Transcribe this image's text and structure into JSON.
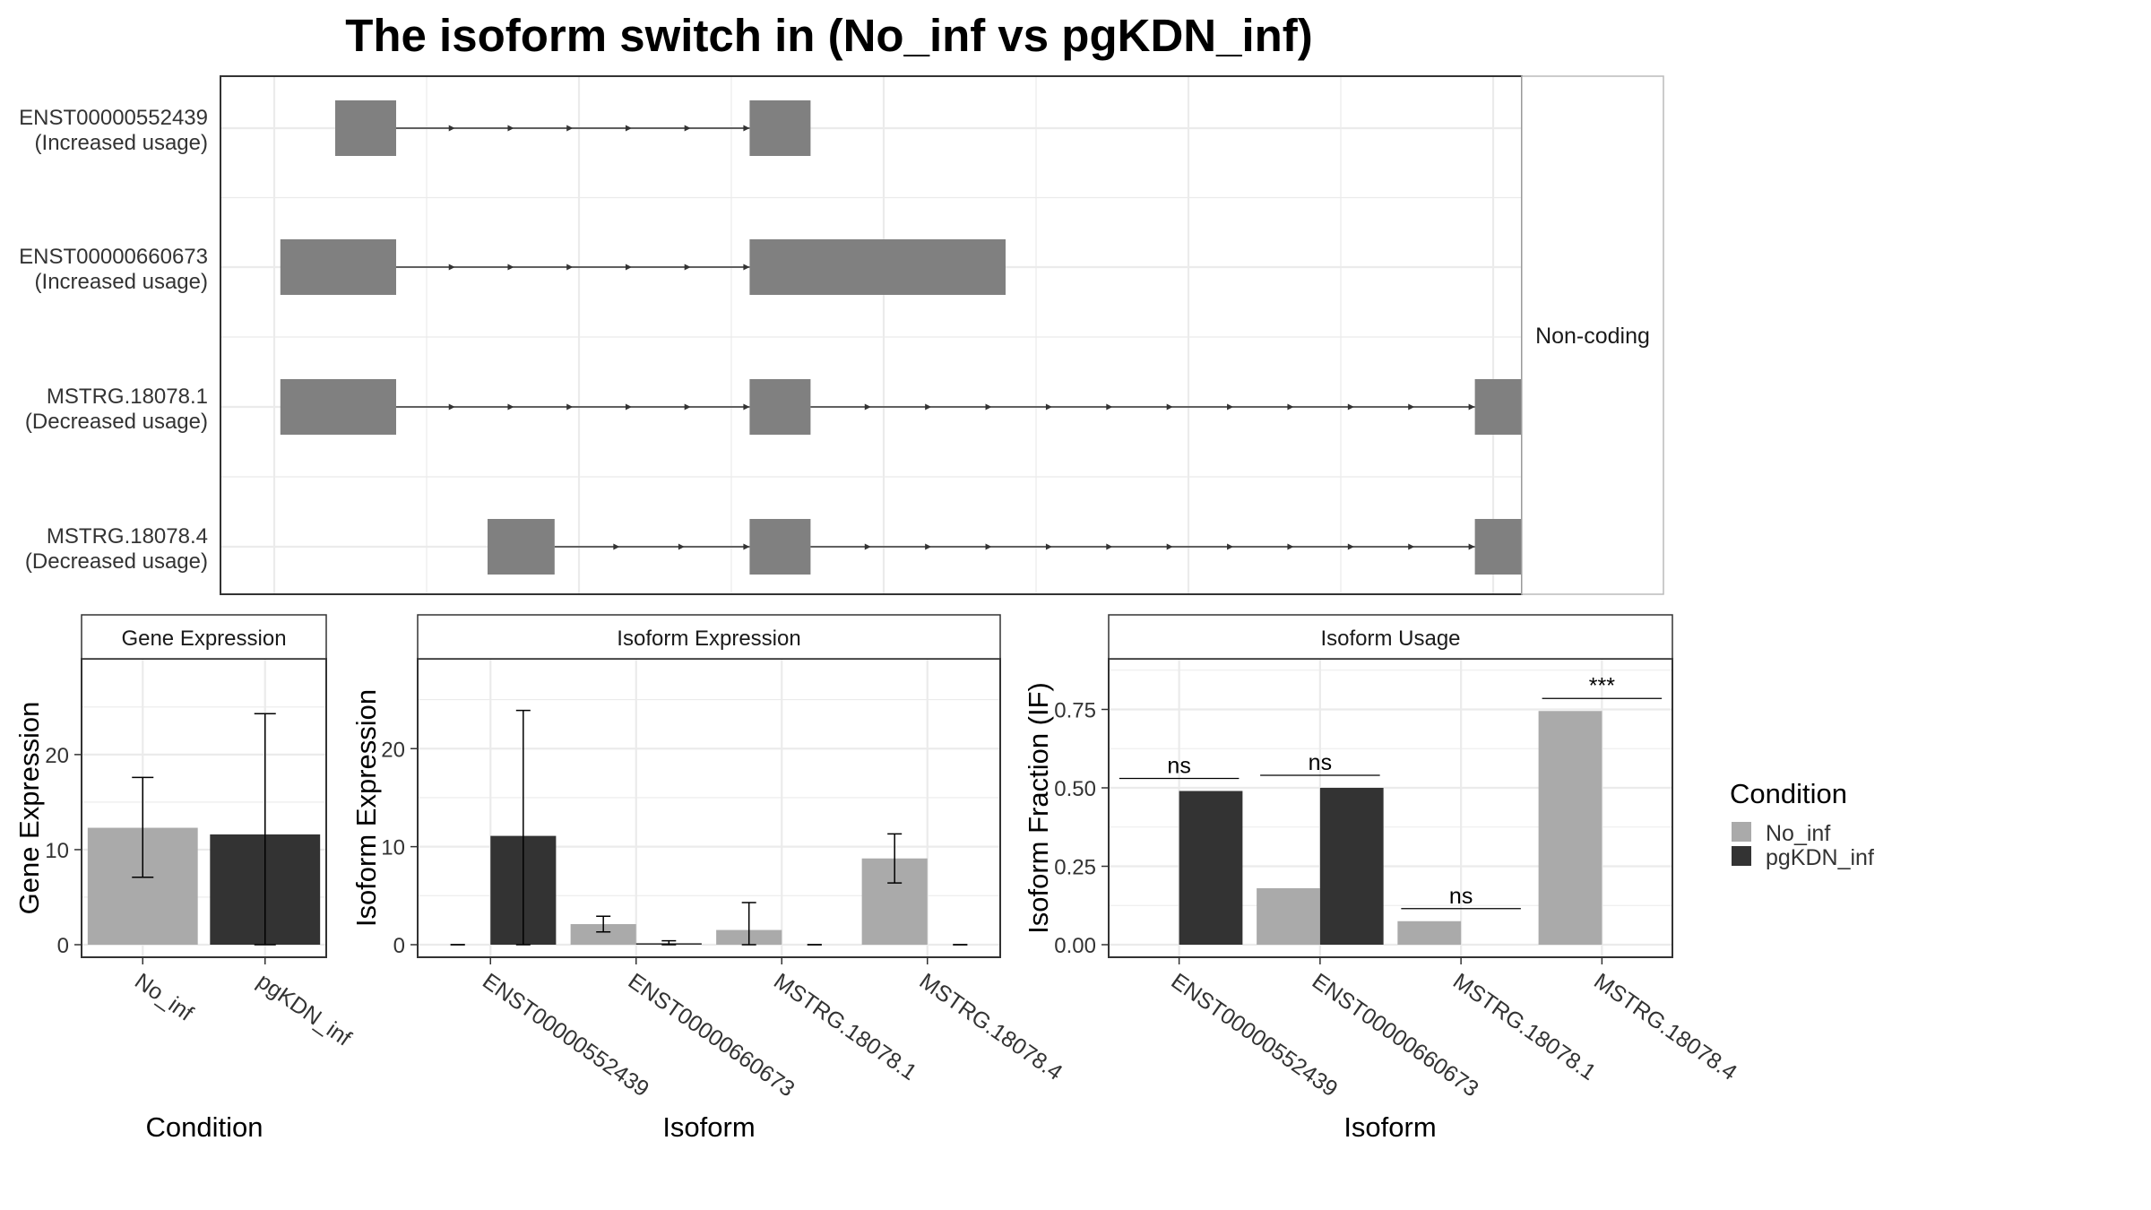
{
  "title": "The isoform switch in  (No_inf vs pgKDN_inf)",
  "colors": {
    "no_inf": "#aaaaaa",
    "pgkdn_inf": "#333333",
    "exon": "#808080"
  },
  "structure": {
    "strip_label": "Non-coding",
    "x_range": [
      0,
      100
    ],
    "transcripts": [
      {
        "id": "ENST00000552439",
        "status": "(Increased usage)",
        "exons": [
          [
            5,
            10
          ],
          [
            39,
            44
          ]
        ]
      },
      {
        "id": "ENST00000660673",
        "status": "(Increased usage)",
        "exons": [
          [
            0.5,
            10
          ],
          [
            39,
            60
          ]
        ]
      },
      {
        "id": "MSTRG.18078.1",
        "status": "(Decreased usage)",
        "exons": [
          [
            0.5,
            10
          ],
          [
            39,
            44
          ],
          [
            98.5,
            103
          ]
        ]
      },
      {
        "id": "MSTRG.18078.4",
        "status": "(Decreased usage)",
        "exons": [
          [
            17.5,
            23
          ],
          [
            39,
            44
          ],
          [
            98.5,
            103
          ]
        ]
      }
    ]
  },
  "chart_data": [
    {
      "type": "bar",
      "title": "Gene Expression",
      "xlabel": "Condition",
      "ylabel": "Gene Expression",
      "ylim": [
        0,
        29.7
      ],
      "yticks": [
        0,
        10,
        20
      ],
      "categories": [
        "No_inf",
        "pgKDN_inf"
      ],
      "values": [
        12.3,
        11.6
      ],
      "error_low": [
        7.1,
        0
      ],
      "error_high": [
        17.6,
        24.3
      ]
    },
    {
      "type": "bar",
      "title": "Isoform Expression",
      "xlabel": "Isoform",
      "ylabel": "Isoform Expression",
      "ylim": [
        0,
        28.8
      ],
      "yticks": [
        0,
        10,
        20
      ],
      "categories": [
        "ENST00000552439",
        "ENST00000660673",
        "MSTRG.18078.1",
        "MSTRG.18078.4"
      ],
      "series": [
        {
          "name": "No_inf",
          "values": [
            0,
            2.1,
            1.5,
            8.8
          ],
          "error_low": [
            0,
            1.3,
            0,
            6.3
          ],
          "error_high": [
            0,
            2.9,
            4.3,
            11.3
          ]
        },
        {
          "name": "pgKDN_inf",
          "values": [
            11.1,
            0.15,
            0,
            0
          ],
          "error_low": [
            0,
            0,
            0,
            0
          ],
          "error_high": [
            23.9,
            0.4,
            0,
            0
          ]
        }
      ]
    },
    {
      "type": "bar",
      "title": "Isoform Usage",
      "xlabel": "Isoform",
      "ylabel": "Isoform Fraction (IF)",
      "ylim": [
        0,
        0.9
      ],
      "yticks": [
        0,
        0.25,
        0.5,
        0.75
      ],
      "ytick_labels": [
        "0.00",
        "0.25",
        "0.50",
        "0.75"
      ],
      "categories": [
        "ENST00000552439",
        "ENST00000660673",
        "MSTRG.18078.1",
        "MSTRG.18078.4"
      ],
      "series": [
        {
          "name": "No_inf",
          "values": [
            0,
            0.18,
            0.075,
            0.745
          ]
        },
        {
          "name": "pgKDN_inf",
          "values": [
            0.49,
            0.5,
            0,
            0
          ]
        }
      ],
      "significance": [
        "ns",
        "ns",
        "ns",
        "***"
      ]
    }
  ],
  "legend": {
    "title": "Condition",
    "items": [
      {
        "label": "No_inf",
        "color": "#aaaaaa"
      },
      {
        "label": "pgKDN_inf",
        "color": "#333333"
      }
    ]
  }
}
